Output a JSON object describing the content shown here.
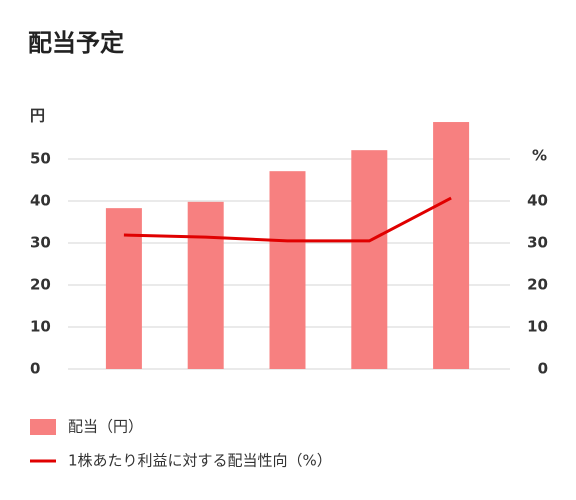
{
  "chart_data": {
    "type": "bar_line",
    "title": "配当予定",
    "y_label": "円",
    "y2_label": "%",
    "categories": [
      null,
      null,
      null,
      null,
      null
    ],
    "series": [
      {
        "name": "配当（円）",
        "color": "#f78080",
        "type": "bar",
        "values": [
          38.3,
          39.8,
          47.1,
          52.1,
          58.8
        ]
      },
      {
        "name": "1株あたり利益に対する配当性向（%）",
        "color": "#e00000",
        "type": "line",
        "axis": "y2",
        "values": [
          31.9,
          31.4,
          30.5,
          30.5,
          40.7
        ]
      }
    ],
    "ylim": [
      0,
      60
    ],
    "yticks": [
      0,
      10,
      20,
      30,
      40,
      50
    ],
    "y2lim": [
      0,
      60
    ],
    "y2ticks": [
      0,
      10,
      20,
      30,
      40
    ],
    "grid": true,
    "legend": "bottom"
  }
}
